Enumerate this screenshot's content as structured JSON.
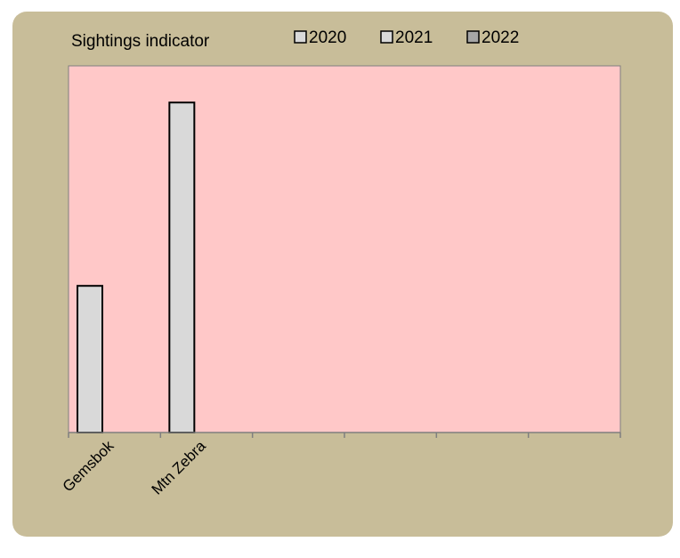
{
  "chart_data": {
    "type": "bar",
    "title": "Sightings indicator",
    "categories": [
      "Gemsbok",
      "Mtn Zebra",
      "",
      "",
      "",
      ""
    ],
    "series": [
      {
        "name": "2020",
        "values": [
          1.2,
          2.7,
          null,
          null,
          null,
          null
        ]
      },
      {
        "name": "2021",
        "values": [
          null,
          null,
          null,
          null,
          null,
          null
        ]
      },
      {
        "name": "2022",
        "values": [
          null,
          null,
          null,
          null,
          null,
          null
        ]
      }
    ],
    "ylim": [
      0,
      3
    ],
    "grid": false,
    "legend_position": "top-right",
    "colors": {
      "card_background": "#c8bd99",
      "plot_background": "#ffc8c8",
      "series_2020": "#d9d9d9",
      "series_2021": "#d9d9d9",
      "series_2022": "#a6a6a6",
      "bar_stroke": "#000000",
      "axis": "#7f7f7f"
    }
  }
}
